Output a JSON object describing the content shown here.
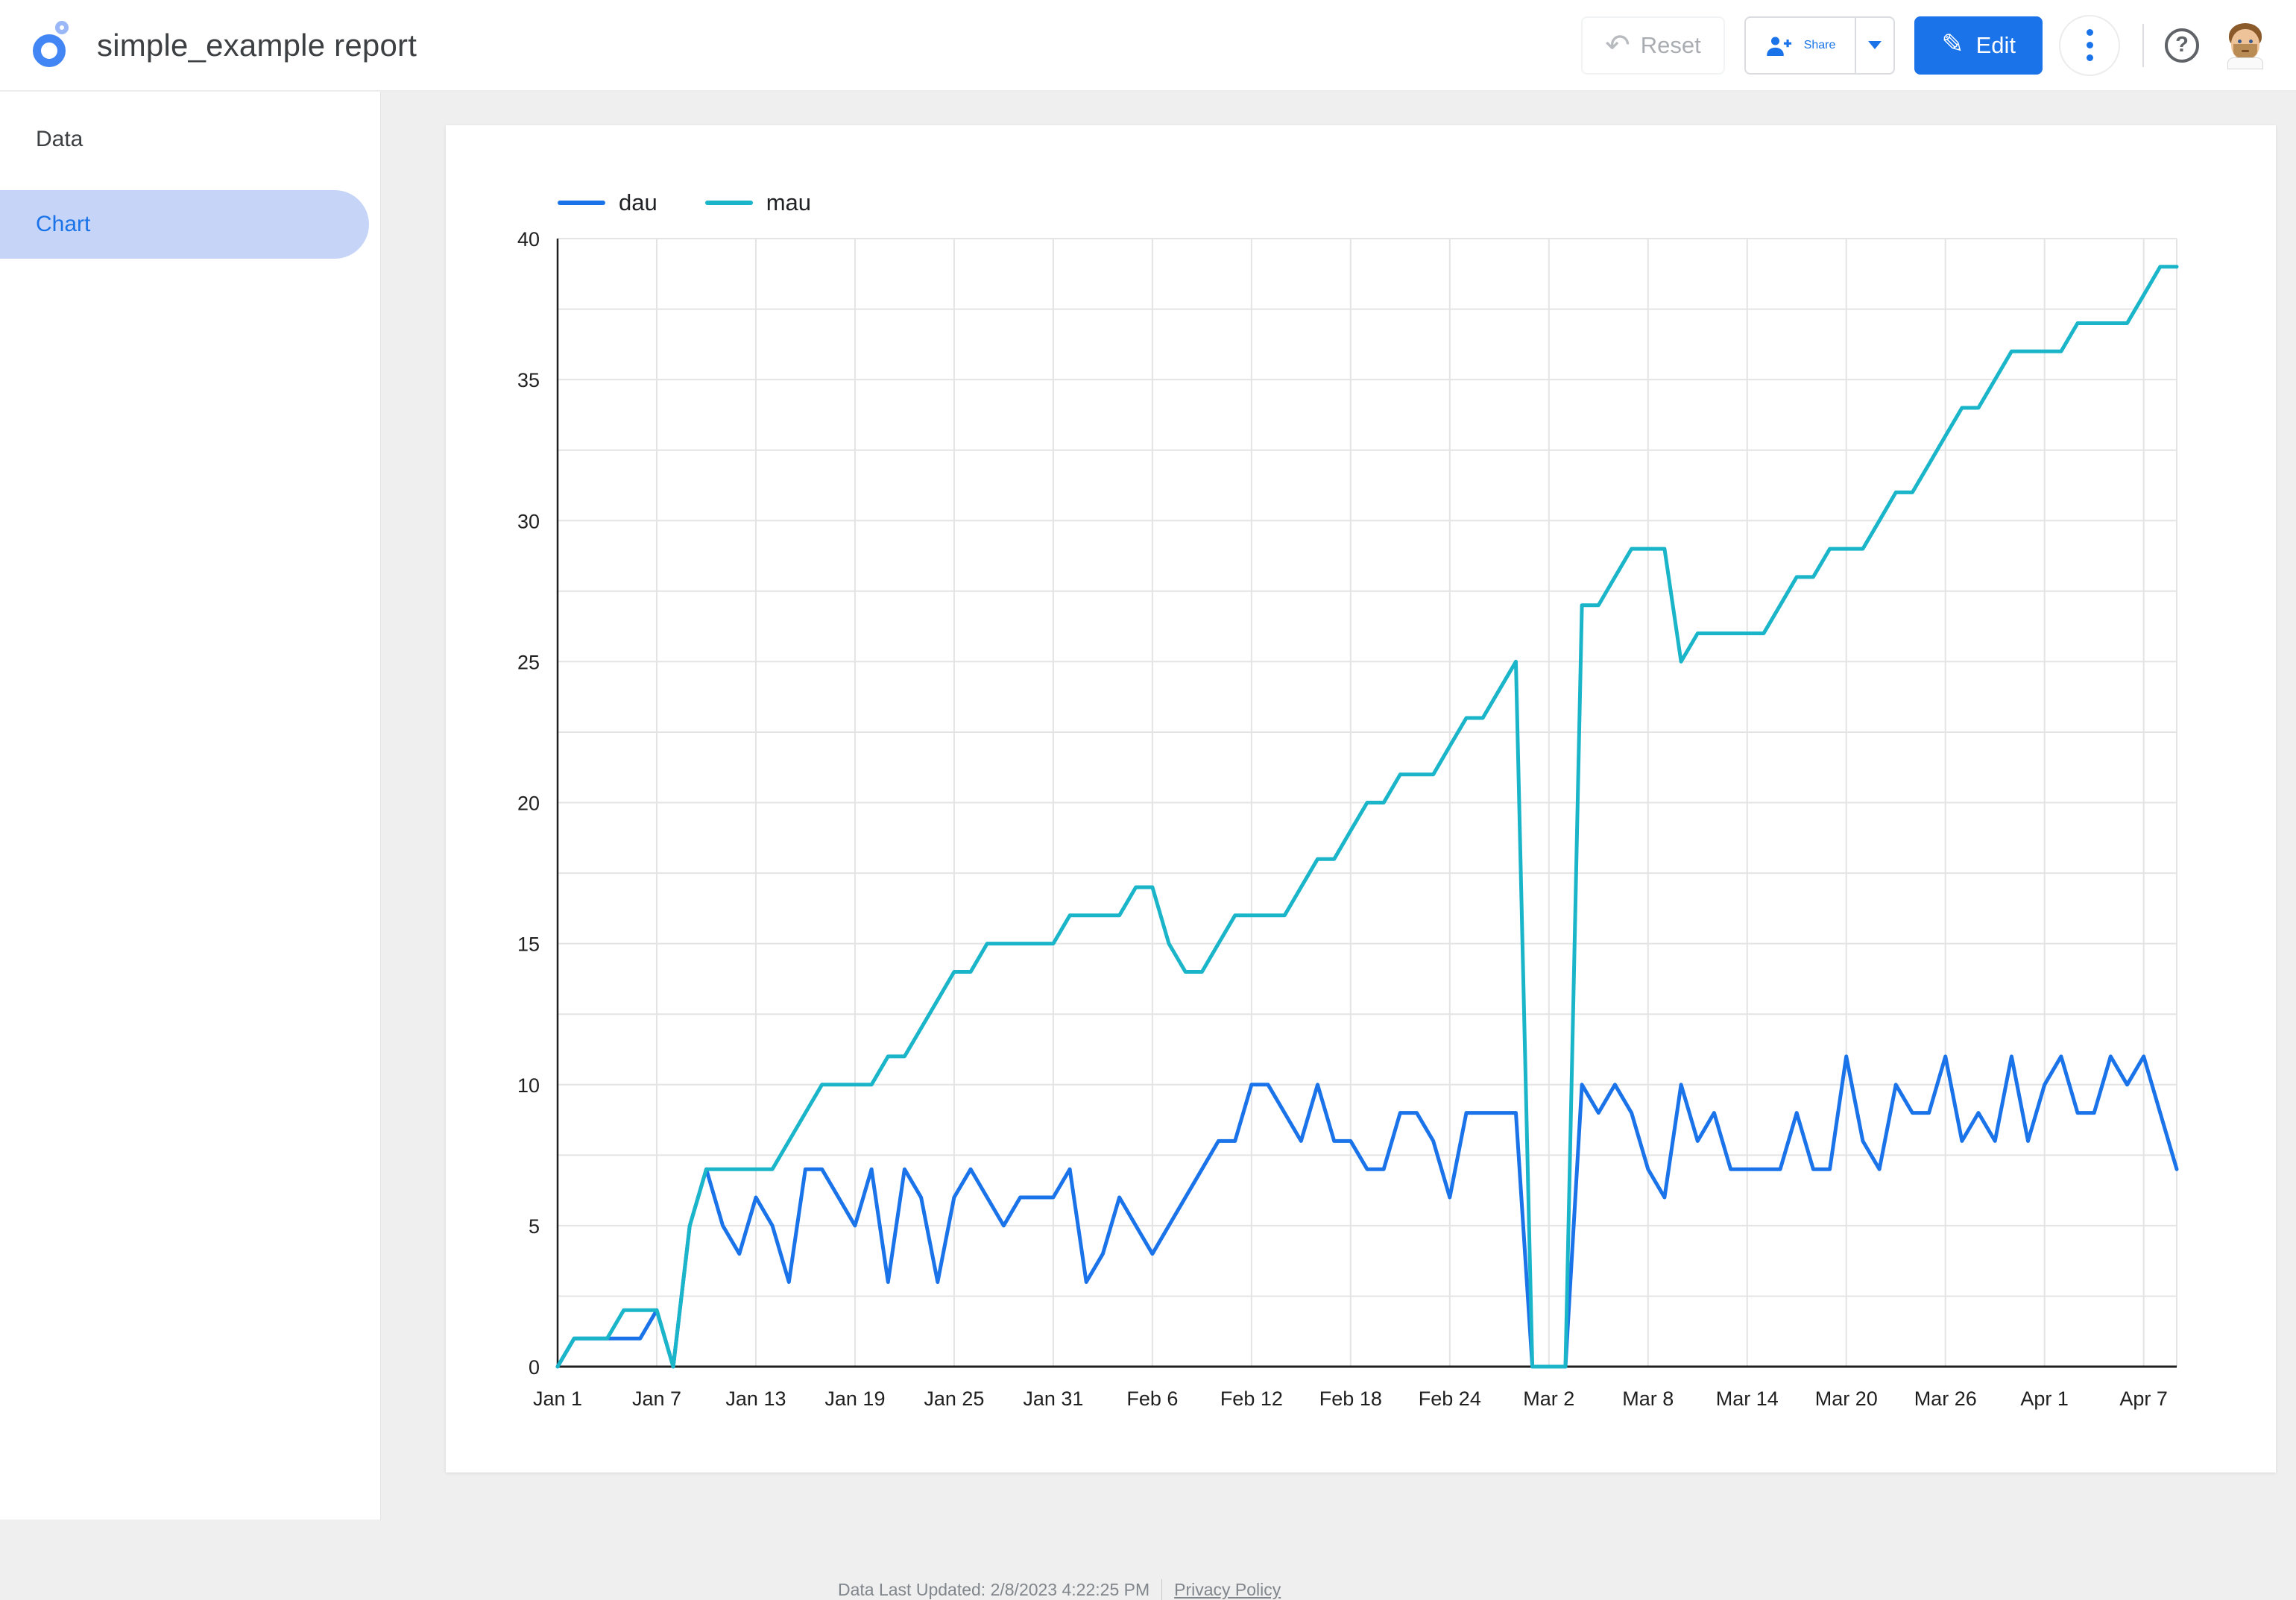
{
  "header": {
    "title": "simple_example report",
    "reset_label": "Reset",
    "share_label": "Share",
    "edit_label": "Edit"
  },
  "sidebar": {
    "items": [
      {
        "label": "Data",
        "active": false
      },
      {
        "label": "Chart",
        "active": true
      }
    ]
  },
  "footer": {
    "last_updated": "Data Last Updated: 2/8/2023 4:22:25 PM",
    "privacy_label": "Privacy Policy"
  },
  "colors": {
    "accent": "#1a73e8",
    "dau_line": "#1a73e8",
    "mau_line": "#1ab5c9",
    "grid": "#e4e4e4",
    "axis": "#1f1f1f",
    "selected_pill": "#c5d4f7"
  },
  "chart_data": {
    "type": "line",
    "title": "",
    "xlabel": "",
    "ylabel": "",
    "date_start": "Jan 1",
    "date_end": "Apr 9",
    "n_points": 99,
    "ylim": [
      0,
      40
    ],
    "y_ticks": [
      0,
      5,
      10,
      15,
      20,
      25,
      30,
      35,
      40
    ],
    "y_minor_step": 2.5,
    "grid": true,
    "legend_position": "top-left",
    "x_tick_positions": [
      0,
      6,
      12,
      18,
      24,
      30,
      36,
      42,
      48,
      54,
      60,
      66,
      72,
      78,
      84,
      90,
      96
    ],
    "x_tick_labels": [
      "Jan 1",
      "Jan 7",
      "Jan 13",
      "Jan 19",
      "Jan 25",
      "Jan 31",
      "Feb 6",
      "Feb 12",
      "Feb 18",
      "Feb 24",
      "Mar 2",
      "Mar 8",
      "Mar 14",
      "Mar 20",
      "Mar 26",
      "Apr 1",
      "Apr 7"
    ],
    "series": [
      {
        "name": "dau",
        "color": "#1a73e8",
        "values": [
          0,
          1,
          1,
          1,
          1,
          1,
          2,
          0,
          5,
          7,
          5,
          4,
          6,
          5,
          3,
          7,
          7,
          6,
          5,
          7,
          3,
          7,
          6,
          3,
          6,
          7,
          6,
          5,
          6,
          6,
          6,
          7,
          3,
          4,
          6,
          5,
          4,
          5,
          6,
          7,
          8,
          8,
          10,
          10,
          9,
          8,
          10,
          8,
          8,
          7,
          7,
          9,
          9,
          8,
          6,
          9,
          9,
          9,
          9,
          0,
          0,
          0,
          10,
          9,
          10,
          9,
          7,
          6,
          10,
          8,
          9,
          7,
          7,
          7,
          7,
          9,
          7,
          7,
          11,
          8,
          7,
          10,
          9,
          9,
          11,
          8,
          9,
          8,
          11,
          8,
          10,
          11,
          9,
          9,
          11,
          10,
          11,
          9,
          7
        ]
      },
      {
        "name": "mau",
        "color": "#1ab5c9",
        "values": [
          0,
          1,
          1,
          1,
          2,
          2,
          2,
          0,
          5,
          7,
          7,
          7,
          7,
          7,
          8,
          9,
          10,
          10,
          10,
          10,
          11,
          11,
          12,
          13,
          14,
          14,
          15,
          15,
          15,
          15,
          15,
          16,
          16,
          16,
          16,
          17,
          17,
          15,
          14,
          14,
          15,
          16,
          16,
          16,
          16,
          17,
          18,
          18,
          19,
          20,
          20,
          21,
          21,
          21,
          22,
          23,
          23,
          24,
          25,
          0,
          0,
          0,
          27,
          27,
          28,
          29,
          29,
          29,
          25,
          26,
          26,
          26,
          26,
          26,
          27,
          28,
          28,
          29,
          29,
          29,
          30,
          31,
          31,
          32,
          33,
          34,
          34,
          35,
          36,
          36,
          36,
          36,
          37,
          37,
          37,
          37,
          38,
          39,
          39
        ]
      }
    ]
  }
}
